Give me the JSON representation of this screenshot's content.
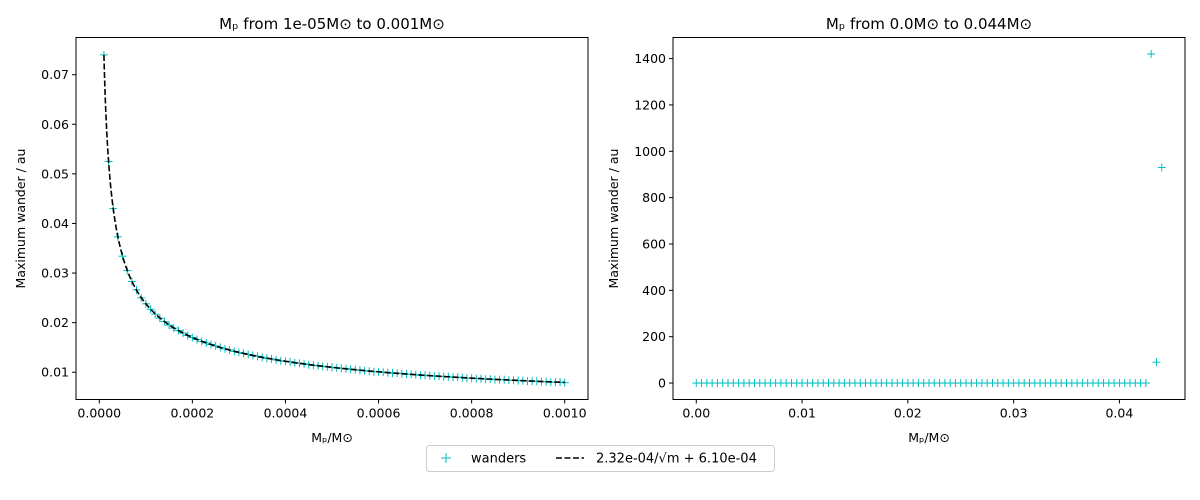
{
  "chart_data": [
    {
      "type": "scatter",
      "title": "Mₚ from 1e-05M⊙ to 0.001M⊙",
      "xlabel": "Mₚ/M⊙",
      "ylabel": "Maximum wander / au",
      "xlim": [
        -5e-05,
        0.00105
      ],
      "ylim": [
        0.0045,
        0.0775
      ],
      "xticks": [
        0.0,
        0.0002,
        0.0004,
        0.0006,
        0.0008,
        0.001
      ],
      "xtick_labels": [
        "0.0000",
        "0.0002",
        "0.0004",
        "0.0006",
        "0.0008",
        "0.0010"
      ],
      "yticks": [
        0.01,
        0.02,
        0.03,
        0.04,
        0.05,
        0.06,
        0.07
      ],
      "ytick_labels": [
        "0.01",
        "0.02",
        "0.03",
        "0.04",
        "0.05",
        "0.06",
        "0.07"
      ],
      "series": [
        {
          "name": "wanders",
          "marker": "+",
          "color": "#00bfbf",
          "x": [
            1e-05,
            2e-05,
            3e-05,
            4e-05,
            5e-05,
            6e-05,
            7e-05,
            8e-05,
            9e-05,
            0.0001,
            0.00011,
            0.00012,
            0.00013,
            0.00014,
            0.00015,
            0.00016,
            0.00017,
            0.00018,
            0.00019,
            0.0002,
            0.00021,
            0.00022,
            0.00023,
            0.00024,
            0.00025,
            0.00026,
            0.00027,
            0.00028,
            0.00029,
            0.0003,
            0.00031,
            0.00032,
            0.00033,
            0.00034,
            0.00035,
            0.00036,
            0.00037,
            0.00038,
            0.00039,
            0.0004,
            0.00041,
            0.00042,
            0.00043,
            0.00044,
            0.00045,
            0.00046,
            0.00047,
            0.00048,
            0.00049,
            0.0005,
            0.00051,
            0.00052,
            0.00053,
            0.00054,
            0.00055,
            0.00056,
            0.00057,
            0.00058,
            0.00059,
            0.0006,
            0.00061,
            0.00062,
            0.00063,
            0.00064,
            0.00065,
            0.00066,
            0.00067,
            0.00068,
            0.00069,
            0.0007,
            0.00071,
            0.00072,
            0.00073,
            0.00074,
            0.00075,
            0.00076,
            0.00077,
            0.00078,
            0.00079,
            0.0008,
            0.00081,
            0.00082,
            0.00083,
            0.00084,
            0.00085,
            0.00086,
            0.00087,
            0.00088,
            0.00089,
            0.0009,
            0.00091,
            0.00092,
            0.00093,
            0.00094,
            0.00095,
            0.00096,
            0.00097,
            0.00098,
            0.00099,
            0.001
          ],
          "y": [
            0.074,
            0.0525,
            0.043,
            0.0373,
            0.0334,
            0.0305,
            0.0283,
            0.0266,
            0.025,
            0.0238,
            0.0227,
            0.0217,
            0.0209,
            0.0202,
            0.0195,
            0.0189,
            0.0184,
            0.0179,
            0.0174,
            0.017,
            0.0166,
            0.0162,
            0.0159,
            0.0156,
            0.0153,
            0.015,
            0.0147,
            0.0145,
            0.0142,
            0.014,
            0.0138,
            0.0136,
            0.0134,
            0.0132,
            0.013,
            0.0128,
            0.0127,
            0.0125,
            0.0123,
            0.0122,
            0.0121,
            0.0119,
            0.0118,
            0.0117,
            0.0115,
            0.0114,
            0.0113,
            0.0112,
            0.0111,
            0.011,
            0.0109,
            0.0108,
            0.0107,
            0.0106,
            0.0105,
            0.0104,
            0.0103,
            0.0102,
            0.0101,
            0.0101,
            0.01,
            0.0099,
            0.0098,
            0.0098,
            0.0097,
            0.0096,
            0.0096,
            0.0095,
            0.0094,
            0.0094,
            0.0093,
            0.0092,
            0.0092,
            0.0091,
            0.0091,
            0.009,
            0.009,
            0.0089,
            0.0088,
            0.0088,
            0.0087,
            0.0087,
            0.0086,
            0.0086,
            0.0085,
            0.0085,
            0.0085,
            0.0084,
            0.0084,
            0.0083,
            0.0083,
            0.0082,
            0.0082,
            0.0082,
            0.0081,
            0.0081,
            0.008,
            0.008,
            0.008,
            0.0079
          ]
        },
        {
          "name": "2.32e-04/√m + 6.10e-04",
          "line_style": "dashed",
          "color": "#000000",
          "fit": {
            "a": 0.000232,
            "b": 0.00061
          },
          "x_range": [
            1e-05,
            0.001
          ]
        }
      ]
    },
    {
      "type": "scatter",
      "title": "Mₚ from 0.0M⊙ to 0.044M⊙",
      "xlabel": "Mₚ/M⊙",
      "ylabel": "Maximum wander / au",
      "xlim": [
        -0.0022,
        0.0462
      ],
      "ylim": [
        -71,
        1491
      ],
      "xticks": [
        0.0,
        0.01,
        0.02,
        0.03,
        0.04
      ],
      "xtick_labels": [
        "0.00",
        "0.01",
        "0.02",
        "0.03",
        "0.04"
      ],
      "yticks": [
        0,
        200,
        400,
        600,
        800,
        1000,
        1200,
        1400
      ],
      "ytick_labels": [
        "0",
        "200",
        "400",
        "600",
        "800",
        "1000",
        "1200",
        "1400"
      ],
      "series": [
        {
          "name": "wanders",
          "marker": "+",
          "color": "#00bfbf",
          "x": [
            0.0,
            0.0005,
            0.001,
            0.0015,
            0.002,
            0.0025,
            0.003,
            0.0035,
            0.004,
            0.0045,
            0.005,
            0.0055,
            0.006,
            0.0065,
            0.007,
            0.0075,
            0.008,
            0.0085,
            0.009,
            0.0095,
            0.01,
            0.0105,
            0.011,
            0.0115,
            0.012,
            0.0125,
            0.013,
            0.0135,
            0.014,
            0.0145,
            0.015,
            0.0155,
            0.016,
            0.0165,
            0.017,
            0.0175,
            0.018,
            0.0185,
            0.019,
            0.0195,
            0.02,
            0.0205,
            0.021,
            0.0215,
            0.022,
            0.0225,
            0.023,
            0.0235,
            0.024,
            0.0245,
            0.025,
            0.0255,
            0.026,
            0.0265,
            0.027,
            0.0275,
            0.028,
            0.0285,
            0.029,
            0.0295,
            0.03,
            0.0305,
            0.031,
            0.0315,
            0.032,
            0.0325,
            0.033,
            0.0335,
            0.034,
            0.0345,
            0.035,
            0.0355,
            0.036,
            0.0365,
            0.037,
            0.0375,
            0.038,
            0.0385,
            0.039,
            0.0395,
            0.04,
            0.0405,
            0.041,
            0.0415,
            0.042,
            0.0425,
            0.043,
            0.0435,
            0.044
          ],
          "y": [
            0,
            0,
            0,
            0,
            0,
            0,
            0,
            0,
            0,
            0,
            0,
            0,
            0,
            0,
            0,
            0,
            0,
            0,
            0,
            0,
            0,
            0,
            0,
            0,
            0,
            0,
            0,
            0,
            0,
            0,
            0,
            0,
            0,
            0,
            0,
            0,
            0,
            0,
            0,
            0,
            0,
            0,
            0,
            0,
            0,
            0,
            0,
            0,
            0,
            0,
            0,
            0,
            0,
            0,
            0,
            0,
            0,
            0,
            0,
            0,
            0,
            0,
            0,
            0,
            0,
            0,
            0,
            0,
            0,
            0,
            0,
            0,
            0,
            0,
            0,
            0,
            0,
            0,
            0,
            0,
            0,
            0,
            0,
            0,
            0,
            0,
            1420,
            90,
            930
          ]
        }
      ]
    }
  ],
  "legend": {
    "placement": "bottom-center",
    "entries": [
      {
        "label": "wanders",
        "kind": "marker",
        "marker": "+",
        "color": "#00bfbf"
      },
      {
        "label": "2.32e-04/√m + 6.10e-04",
        "kind": "line",
        "line_style": "dashed",
        "color": "#000000"
      }
    ]
  }
}
